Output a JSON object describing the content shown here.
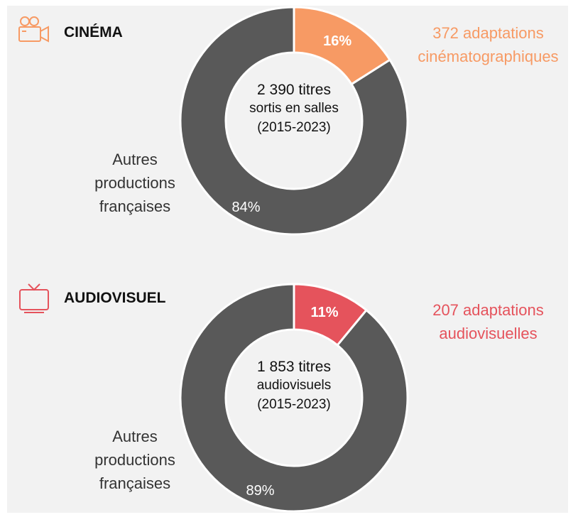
{
  "chart_data": [
    {
      "type": "donut",
      "title": "CINÉMA",
      "center_text": [
        "2 390 titres",
        "sortis en salles",
        "(2015-2023)"
      ],
      "categories": [
        "372 adaptations cinématographiques",
        "Autres productions françaises"
      ],
      "values": [
        16,
        84
      ],
      "value_labels": [
        "16%",
        "84%"
      ],
      "colors": [
        "#f79a64",
        "#595959"
      ]
    },
    {
      "type": "donut",
      "title": "AUDIOVISUEL",
      "center_text": [
        "1 853 titres",
        "audiovisuels",
        "(2015-2023)"
      ],
      "categories": [
        "207 adaptations audiovisuelles",
        "Autres productions françaises"
      ],
      "values": [
        11,
        89
      ],
      "value_labels": [
        "11%",
        "89%"
      ],
      "colors": [
        "#e5535c",
        "#595959"
      ]
    }
  ]
}
